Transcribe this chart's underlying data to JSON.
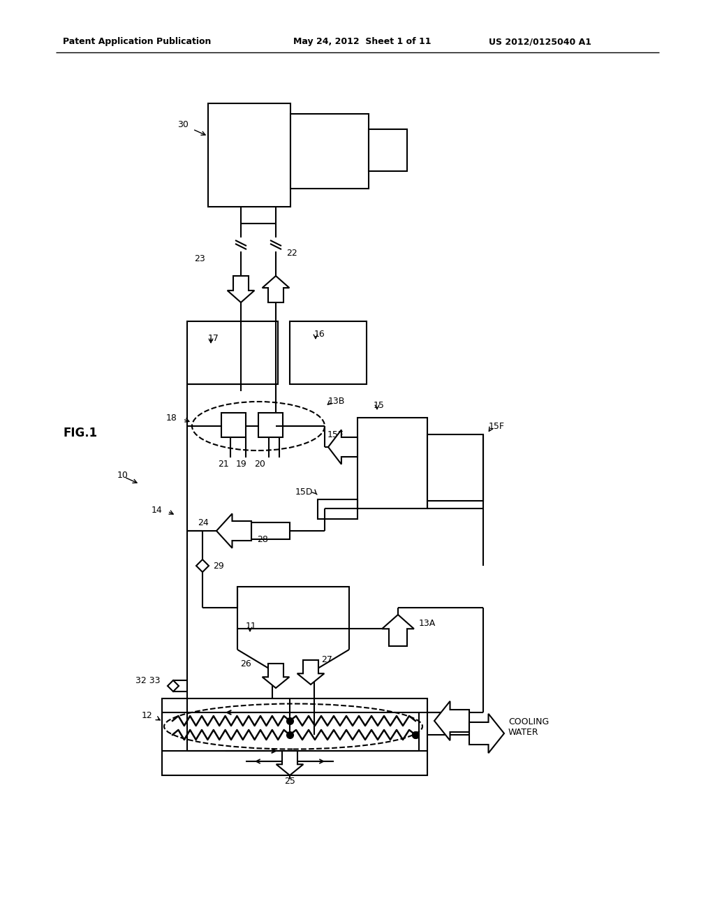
{
  "bg_color": "#ffffff",
  "header_left": "Patent Application Publication",
  "header_mid": "May 24, 2012  Sheet 1 of 11",
  "header_right": "US 2012/0125040 A1",
  "fig_label": "FIG.1",
  "system_label": "10"
}
